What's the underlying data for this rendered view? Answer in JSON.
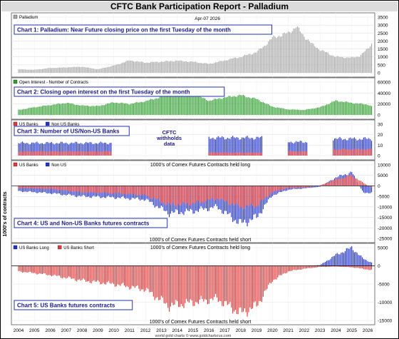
{
  "title": "CFTC Bank Participation Report - Palladium",
  "date_label": "Apr-07  2026",
  "credit": "world gold charts © www.goldchartsrus.com",
  "y_side_label": "1000's of contracts",
  "colors": {
    "gray": "#a8a8a8",
    "green": "#2f9e2f",
    "red": "#e03a3a",
    "blue": "#2233cc",
    "box_border": "#2233aa",
    "box_text": "#1a1a88"
  },
  "x_axis": {
    "ticks": [
      "2004",
      "2005",
      "2006",
      "2007",
      "2008",
      "2009",
      "2010",
      "2011",
      "2012",
      "2013",
      "2014",
      "2015",
      "2016",
      "2017",
      "2018",
      "2019",
      "2020",
      "2021",
      "2022",
      "2023",
      "2024",
      "2025",
      "2026"
    ]
  },
  "withhold_note": {
    "line1": "CFTC",
    "line2": "withholds",
    "line3": "data"
  },
  "chart_data": [
    {
      "type": "bar",
      "id": "chart1",
      "box_label": "Chart 1: Palladium: Near Future closing price on the first Tuesday of the month",
      "legend": [
        {
          "name": "Palladium",
          "color": "#a8a8a8"
        }
      ],
      "ylim": [
        0,
        3500
      ],
      "yticks": [
        "0",
        "500",
        "1000",
        "1500",
        "2000",
        "2500",
        "3000",
        "3500"
      ],
      "x": [
        2004,
        2005,
        2006,
        2007,
        2008,
        2009,
        2010,
        2011,
        2012,
        2013,
        2014,
        2015,
        2016,
        2017,
        2017.5,
        2018,
        2019,
        2019.5,
        2020,
        2021,
        2021.5,
        2022,
        2022.5,
        2023,
        2024,
        2025,
        2025.5,
        2026,
        2026.3
      ],
      "values": [
        220,
        190,
        300,
        340,
        380,
        220,
        450,
        780,
        640,
        700,
        760,
        690,
        560,
        780,
        900,
        1000,
        1300,
        1700,
        2200,
        2500,
        2900,
        2300,
        1800,
        1450,
        1000,
        950,
        1050,
        1500,
        1900
      ],
      "series": [
        {
          "name": "Palladium",
          "values": "values"
        }
      ]
    },
    {
      "type": "bar",
      "id": "chart2",
      "box_label": "Chart 2: Closing open interest on the first Tuesday of the month",
      "legend": [
        {
          "name": "Open Interest - Number of Contracts",
          "color": "#2f9e2f"
        }
      ],
      "ylim": [
        0,
        60000
      ],
      "yticks": [
        "0",
        "20000",
        "40000",
        "60000"
      ],
      "x": [
        2004,
        2005,
        2006,
        2007,
        2008,
        2009,
        2010,
        2011,
        2012,
        2013,
        2014,
        2015,
        2016,
        2017,
        2018,
        2019,
        2020,
        2021,
        2022,
        2023,
        2024,
        2025,
        2026,
        2026.3
      ],
      "values": [
        9000,
        14000,
        18000,
        22000,
        17000,
        16000,
        23000,
        20000,
        25000,
        33000,
        42000,
        38000,
        26000,
        32000,
        36000,
        29000,
        15000,
        10000,
        9000,
        14000,
        26000,
        22000,
        19000,
        15000
      ]
    },
    {
      "type": "bar",
      "id": "chart3",
      "box_label": "Chart 3: Number of US/Non-US Banks",
      "legend": [
        {
          "name": "US Banks",
          "color": "#e03a3a"
        },
        {
          "name": "Non US Banks",
          "color": "#2233cc"
        }
      ],
      "ylim": [
        0,
        30
      ],
      "yticks": [
        "0",
        "10",
        "20",
        "30"
      ],
      "segments": [
        {
          "x0": 2004,
          "x1": 2009.85,
          "us": 4,
          "total": 12
        },
        {
          "x0": 2015.95,
          "x1": 2019.35,
          "us": 3,
          "total": 17
        },
        {
          "x0": 2021,
          "x1": 2022.2,
          "us": 4,
          "total": 13
        },
        {
          "x0": 2023.8,
          "x1": 2026.3,
          "us": 6,
          "total": 16
        }
      ],
      "gaps": [
        {
          "from": 2009.85,
          "to": 2015.95,
          "note": "CFTC withholds data"
        }
      ]
    },
    {
      "type": "bar",
      "id": "chart4",
      "box_label": "Chart 4: US and Non-US Banks futures contracts",
      "legend": [
        {
          "name": "US Banks",
          "color": "#e03a3a"
        },
        {
          "name": "Non US",
          "color": "#2233cc"
        }
      ],
      "top_label": "1000's of Comex Futures Contracts held long",
      "bottom_label": "1000's of Comex Futures Contracts held short",
      "ylim": [
        -25000,
        10000
      ],
      "yticks": [
        "10000",
        "5000",
        "0",
        "-5000",
        "-10000",
        "-15000",
        "-20000",
        "-25000"
      ],
      "x": [
        2004,
        2006,
        2008,
        2010,
        2012,
        2013.5,
        2015,
        2016.5,
        2018,
        2019,
        2020,
        2021,
        2022,
        2023,
        2024,
        2025,
        2025.7,
        2026.3
      ],
      "series": [
        {
          "name": "US Banks",
          "values": [
            -1000,
            -1500,
            -3000,
            -3500,
            -4500,
            -9000,
            -8500,
            -6000,
            -10000,
            -9500,
            -3000,
            -1000,
            -800,
            200,
            3000,
            5000,
            1500,
            -1000
          ]
        },
        {
          "name": "Non US",
          "values": [
            -2500,
            -3500,
            -5000,
            -5500,
            -6500,
            -13000,
            -12000,
            -10000,
            -18000,
            -15000,
            -4500,
            -1800,
            -1200,
            -400,
            4000,
            6500,
            -3000,
            -3500
          ]
        }
      ]
    },
    {
      "type": "bar",
      "id": "chart5",
      "box_label": "Chart 5: US Banks futures contracts",
      "legend": [
        {
          "name": "US Banks Long",
          "color": "#2233cc"
        },
        {
          "name": "US Banks Short",
          "color": "#e03a3a"
        }
      ],
      "top_label": "1000's of Comex Futures Contracts held long",
      "bottom_label": "1000's of Comex Futures Contracts held short",
      "ylim": [
        -15000,
        5000
      ],
      "yticks": [
        "5000",
        "0",
        "-5000",
        "-10000",
        "-15000"
      ],
      "x": [
        2004,
        2006,
        2008,
        2010,
        2012,
        2013.5,
        2015,
        2016.5,
        2018,
        2019,
        2020,
        2021,
        2022,
        2023,
        2024,
        2025,
        2025.7,
        2026.3
      ],
      "series": [
        {
          "name": "US Banks Long",
          "values": [
            0,
            0,
            0,
            0,
            0,
            0,
            0,
            0,
            0,
            0,
            0,
            0,
            0,
            200,
            3000,
            5000,
            2000,
            800
          ]
        },
        {
          "name": "US Banks Short",
          "values": [
            -1500,
            -2500,
            -4000,
            -5000,
            -6500,
            -11000,
            -10000,
            -9000,
            -13000,
            -11000,
            -4000,
            -1500,
            -800,
            -300,
            -200,
            -400,
            -800,
            -1200
          ]
        }
      ]
    }
  ]
}
